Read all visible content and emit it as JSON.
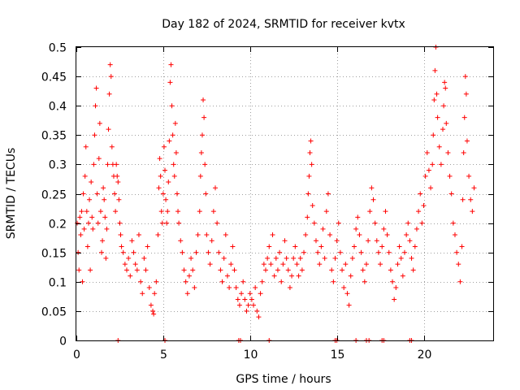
{
  "chart_data": {
    "type": "scatter",
    "title": "Day 182 of 2024, SRMTID for receiver kvtx",
    "xlabel": "GPS time / hours",
    "ylabel": "SRMTID / TECUs",
    "xlim": [
      0,
      24
    ],
    "ylim": [
      0,
      0.5
    ],
    "x_ticks": [
      0,
      5,
      10,
      15,
      20
    ],
    "x_tick_labels": [
      "0",
      "5",
      "10",
      "15",
      "20"
    ],
    "y_ticks": [
      0,
      0.05,
      0.1,
      0.15,
      0.2,
      0.25,
      0.3,
      0.35,
      0.4,
      0.45,
      0.5
    ],
    "y_tick_labels": [
      "0",
      "0.05",
      "0.1",
      "0.15",
      "0.2",
      "0.25",
      "0.3",
      "0.35",
      "0.4",
      "0.45",
      "0.5"
    ],
    "grid": true,
    "marker": "+",
    "color": "#ff0000",
    "series": [
      {
        "name": "SRMTID",
        "points": [
          [
            0.05,
            0.2
          ],
          [
            0.1,
            0.15
          ],
          [
            0.15,
            0.12
          ],
          [
            0.2,
            0.21
          ],
          [
            0.25,
            0.18
          ],
          [
            0.3,
            0.22
          ],
          [
            0.35,
            0.1
          ],
          [
            0.4,
            0.25
          ],
          [
            0.45,
            0.19
          ],
          [
            0.5,
            0.28
          ],
          [
            0.55,
            0.33
          ],
          [
            0.6,
            0.22
          ],
          [
            0.65,
            0.16
          ],
          [
            0.7,
            0.2
          ],
          [
            0.75,
            0.24
          ],
          [
            0.8,
            0.12
          ],
          [
            0.85,
            0.27
          ],
          [
            0.9,
            0.21
          ],
          [
            0.95,
            0.19
          ],
          [
            1.0,
            0.3
          ],
          [
            1.05,
            0.35
          ],
          [
            1.1,
            0.4
          ],
          [
            1.15,
            0.43
          ],
          [
            1.2,
            0.25
          ],
          [
            1.25,
            0.2
          ],
          [
            1.3,
            0.31
          ],
          [
            1.35,
            0.37
          ],
          [
            1.4,
            0.22
          ],
          [
            1.45,
            0.15
          ],
          [
            1.5,
            0.17
          ],
          [
            1.55,
            0.26
          ],
          [
            1.6,
            0.24
          ],
          [
            1.65,
            0.21
          ],
          [
            1.7,
            0.14
          ],
          [
            1.75,
            0.19
          ],
          [
            1.8,
            0.3
          ],
          [
            1.85,
            0.36
          ],
          [
            1.9,
            0.42
          ],
          [
            1.95,
            0.47
          ],
          [
            2.0,
            0.45
          ],
          [
            2.05,
            0.33
          ],
          [
            2.1,
            0.3
          ],
          [
            2.15,
            0.28
          ],
          [
            2.2,
            0.25
          ],
          [
            2.25,
            0.22
          ],
          [
            2.3,
            0.3
          ],
          [
            2.35,
            0.28
          ],
          [
            2.4,
            0.27
          ],
          [
            2.45,
            0.24
          ],
          [
            2.5,
            0.2
          ],
          [
            2.55,
            0.18
          ],
          [
            2.6,
            0.16
          ],
          [
            2.7,
            0.15
          ],
          [
            2.8,
            0.13
          ],
          [
            2.9,
            0.12
          ],
          [
            3.0,
            0.14
          ],
          [
            3.1,
            0.11
          ],
          [
            3.2,
            0.17
          ],
          [
            3.3,
            0.15
          ],
          [
            3.4,
            0.13
          ],
          [
            3.5,
            0.12
          ],
          [
            3.6,
            0.18
          ],
          [
            3.7,
            0.1
          ],
          [
            3.8,
            0.08
          ],
          [
            3.9,
            0.14
          ],
          [
            4.0,
            0.12
          ],
          [
            4.1,
            0.16
          ],
          [
            4.2,
            0.09
          ],
          [
            4.3,
            0.06
          ],
          [
            4.4,
            0.05
          ],
          [
            4.45,
            0.045
          ],
          [
            4.5,
            0.08
          ],
          [
            4.6,
            0.1
          ],
          [
            4.7,
            0.18
          ],
          [
            4.75,
            0.26
          ],
          [
            4.8,
            0.31
          ],
          [
            4.85,
            0.28
          ],
          [
            4.9,
            0.22
          ],
          [
            4.95,
            0.2
          ],
          [
            5.0,
            0.25
          ],
          [
            5.05,
            0.33
          ],
          [
            5.1,
            0.29
          ],
          [
            5.15,
            0.24
          ],
          [
            5.2,
            0.2
          ],
          [
            5.25,
            0.22
          ],
          [
            5.3,
            0.27
          ],
          [
            5.35,
            0.34
          ],
          [
            5.4,
            0.44
          ],
          [
            5.45,
            0.47
          ],
          [
            5.5,
            0.4
          ],
          [
            5.55,
            0.35
          ],
          [
            5.6,
            0.3
          ],
          [
            5.65,
            0.28
          ],
          [
            5.7,
            0.37
          ],
          [
            5.75,
            0.32
          ],
          [
            5.8,
            0.25
          ],
          [
            5.85,
            0.22
          ],
          [
            5.9,
            0.2
          ],
          [
            6.0,
            0.17
          ],
          [
            6.1,
            0.15
          ],
          [
            6.2,
            0.12
          ],
          [
            6.3,
            0.1
          ],
          [
            6.4,
            0.08
          ],
          [
            6.5,
            0.11
          ],
          [
            6.6,
            0.14
          ],
          [
            6.7,
            0.12
          ],
          [
            6.8,
            0.09
          ],
          [
            6.9,
            0.15
          ],
          [
            7.0,
            0.18
          ],
          [
            7.1,
            0.22
          ],
          [
            7.15,
            0.28
          ],
          [
            7.2,
            0.32
          ],
          [
            7.25,
            0.35
          ],
          [
            7.3,
            0.41
          ],
          [
            7.35,
            0.38
          ],
          [
            7.4,
            0.3
          ],
          [
            7.45,
            0.25
          ],
          [
            7.5,
            0.18
          ],
          [
            7.6,
            0.15
          ],
          [
            7.7,
            0.13
          ],
          [
            7.8,
            0.17
          ],
          [
            7.9,
            0.22
          ],
          [
            8.0,
            0.26
          ],
          [
            8.1,
            0.2
          ],
          [
            8.2,
            0.15
          ],
          [
            8.3,
            0.12
          ],
          [
            8.4,
            0.1
          ],
          [
            8.5,
            0.14
          ],
          [
            8.6,
            0.18
          ],
          [
            8.7,
            0.11
          ],
          [
            8.8,
            0.09
          ],
          [
            8.9,
            0.13
          ],
          [
            9.0,
            0.16
          ],
          [
            9.1,
            0.12
          ],
          [
            9.2,
            0.09
          ],
          [
            9.3,
            0.07
          ],
          [
            9.4,
            0.06
          ],
          [
            9.5,
            0.08
          ],
          [
            9.6,
            0.1
          ],
          [
            9.7,
            0.07
          ],
          [
            9.8,
            0.05
          ],
          [
            9.9,
            0.06
          ],
          [
            10.0,
            0.08
          ],
          [
            10.1,
            0.07
          ],
          [
            10.2,
            0.06
          ],
          [
            10.3,
            0.09
          ],
          [
            10.4,
            0.05
          ],
          [
            10.5,
            0.04
          ],
          [
            10.6,
            0.08
          ],
          [
            10.7,
            0.1
          ],
          [
            10.8,
            0.13
          ],
          [
            10.9,
            0.12
          ],
          [
            11.0,
            0.14
          ],
          [
            11.1,
            0.16
          ],
          [
            11.2,
            0.13
          ],
          [
            11.3,
            0.18
          ],
          [
            11.4,
            0.11
          ],
          [
            11.5,
            0.14
          ],
          [
            11.6,
            0.12
          ],
          [
            11.7,
            0.15
          ],
          [
            11.8,
            0.1
          ],
          [
            11.9,
            0.13
          ],
          [
            12.0,
            0.17
          ],
          [
            12.1,
            0.14
          ],
          [
            12.2,
            0.12
          ],
          [
            12.3,
            0.09
          ],
          [
            12.4,
            0.11
          ],
          [
            12.5,
            0.14
          ],
          [
            12.6,
            0.16
          ],
          [
            12.7,
            0.13
          ],
          [
            12.8,
            0.11
          ],
          [
            12.9,
            0.14
          ],
          [
            13.0,
            0.12
          ],
          [
            13.1,
            0.15
          ],
          [
            13.2,
            0.18
          ],
          [
            13.3,
            0.21
          ],
          [
            13.35,
            0.25
          ],
          [
            13.4,
            0.28
          ],
          [
            13.45,
            0.32
          ],
          [
            13.5,
            0.34
          ],
          [
            13.55,
            0.3
          ],
          [
            13.6,
            0.23
          ],
          [
            13.7,
            0.2
          ],
          [
            13.8,
            0.17
          ],
          [
            13.9,
            0.15
          ],
          [
            14.0,
            0.13
          ],
          [
            14.1,
            0.16
          ],
          [
            14.2,
            0.19
          ],
          [
            14.3,
            0.14
          ],
          [
            14.4,
            0.22
          ],
          [
            14.5,
            0.25
          ],
          [
            14.6,
            0.18
          ],
          [
            14.7,
            0.12
          ],
          [
            14.8,
            0.1
          ],
          [
            14.9,
            0.14
          ],
          [
            15.0,
            0.17
          ],
          [
            15.1,
            0.2
          ],
          [
            15.2,
            0.15
          ],
          [
            15.3,
            0.12
          ],
          [
            15.4,
            0.09
          ],
          [
            15.5,
            0.13
          ],
          [
            15.6,
            0.08
          ],
          [
            15.7,
            0.06
          ],
          [
            15.8,
            0.11
          ],
          [
            15.9,
            0.14
          ],
          [
            16.0,
            0.16
          ],
          [
            16.1,
            0.19
          ],
          [
            16.2,
            0.21
          ],
          [
            16.3,
            0.18
          ],
          [
            16.4,
            0.15
          ],
          [
            16.5,
            0.12
          ],
          [
            16.6,
            0.1
          ],
          [
            16.7,
            0.13
          ],
          [
            16.8,
            0.17
          ],
          [
            16.9,
            0.22
          ],
          [
            17.0,
            0.26
          ],
          [
            17.1,
            0.24
          ],
          [
            17.2,
            0.2
          ],
          [
            17.3,
            0.17
          ],
          [
            17.4,
            0.15
          ],
          [
            17.5,
            0.13
          ],
          [
            17.6,
            0.16
          ],
          [
            17.7,
            0.19
          ],
          [
            17.8,
            0.22
          ],
          [
            17.9,
            0.18
          ],
          [
            18.0,
            0.15
          ],
          [
            18.1,
            0.12
          ],
          [
            18.2,
            0.1
          ],
          [
            18.3,
            0.07
          ],
          [
            18.4,
            0.09
          ],
          [
            18.5,
            0.13
          ],
          [
            18.6,
            0.16
          ],
          [
            18.7,
            0.14
          ],
          [
            18.8,
            0.11
          ],
          [
            18.9,
            0.15
          ],
          [
            19.0,
            0.18
          ],
          [
            19.1,
            0.2
          ],
          [
            19.2,
            0.17
          ],
          [
            19.3,
            0.14
          ],
          [
            19.4,
            0.12
          ],
          [
            19.5,
            0.16
          ],
          [
            19.6,
            0.19
          ],
          [
            19.7,
            0.22
          ],
          [
            19.8,
            0.25
          ],
          [
            19.9,
            0.2
          ],
          [
            20.0,
            0.23
          ],
          [
            20.1,
            0.28
          ],
          [
            20.2,
            0.32
          ],
          [
            20.3,
            0.29
          ],
          [
            20.4,
            0.26
          ],
          [
            20.5,
            0.3
          ],
          [
            20.55,
            0.35
          ],
          [
            20.6,
            0.41
          ],
          [
            20.65,
            0.46
          ],
          [
            20.7,
            0.5
          ],
          [
            20.75,
            0.42
          ],
          [
            20.8,
            0.38
          ],
          [
            20.9,
            0.33
          ],
          [
            21.0,
            0.3
          ],
          [
            21.1,
            0.36
          ],
          [
            21.15,
            0.4
          ],
          [
            21.2,
            0.44
          ],
          [
            21.25,
            0.43
          ],
          [
            21.3,
            0.37
          ],
          [
            21.4,
            0.32
          ],
          [
            21.5,
            0.28
          ],
          [
            21.6,
            0.25
          ],
          [
            21.7,
            0.2
          ],
          [
            21.8,
            0.18
          ],
          [
            21.9,
            0.15
          ],
          [
            22.0,
            0.13
          ],
          [
            22.1,
            0.1
          ],
          [
            22.2,
            0.16
          ],
          [
            22.25,
            0.24
          ],
          [
            22.3,
            0.32
          ],
          [
            22.35,
            0.38
          ],
          [
            22.4,
            0.45
          ],
          [
            22.45,
            0.42
          ],
          [
            22.5,
            0.34
          ],
          [
            22.6,
            0.28
          ],
          [
            22.7,
            0.24
          ],
          [
            22.8,
            0.22
          ],
          [
            22.9,
            0.26
          ]
        ]
      }
    ],
    "zero_markers_x": [
      2.4,
      5.1,
      9.35,
      9.45,
      11.1,
      14.9,
      15.0,
      16.1,
      16.7,
      16.85,
      17.6,
      17.7,
      19.2,
      19.3
    ]
  }
}
